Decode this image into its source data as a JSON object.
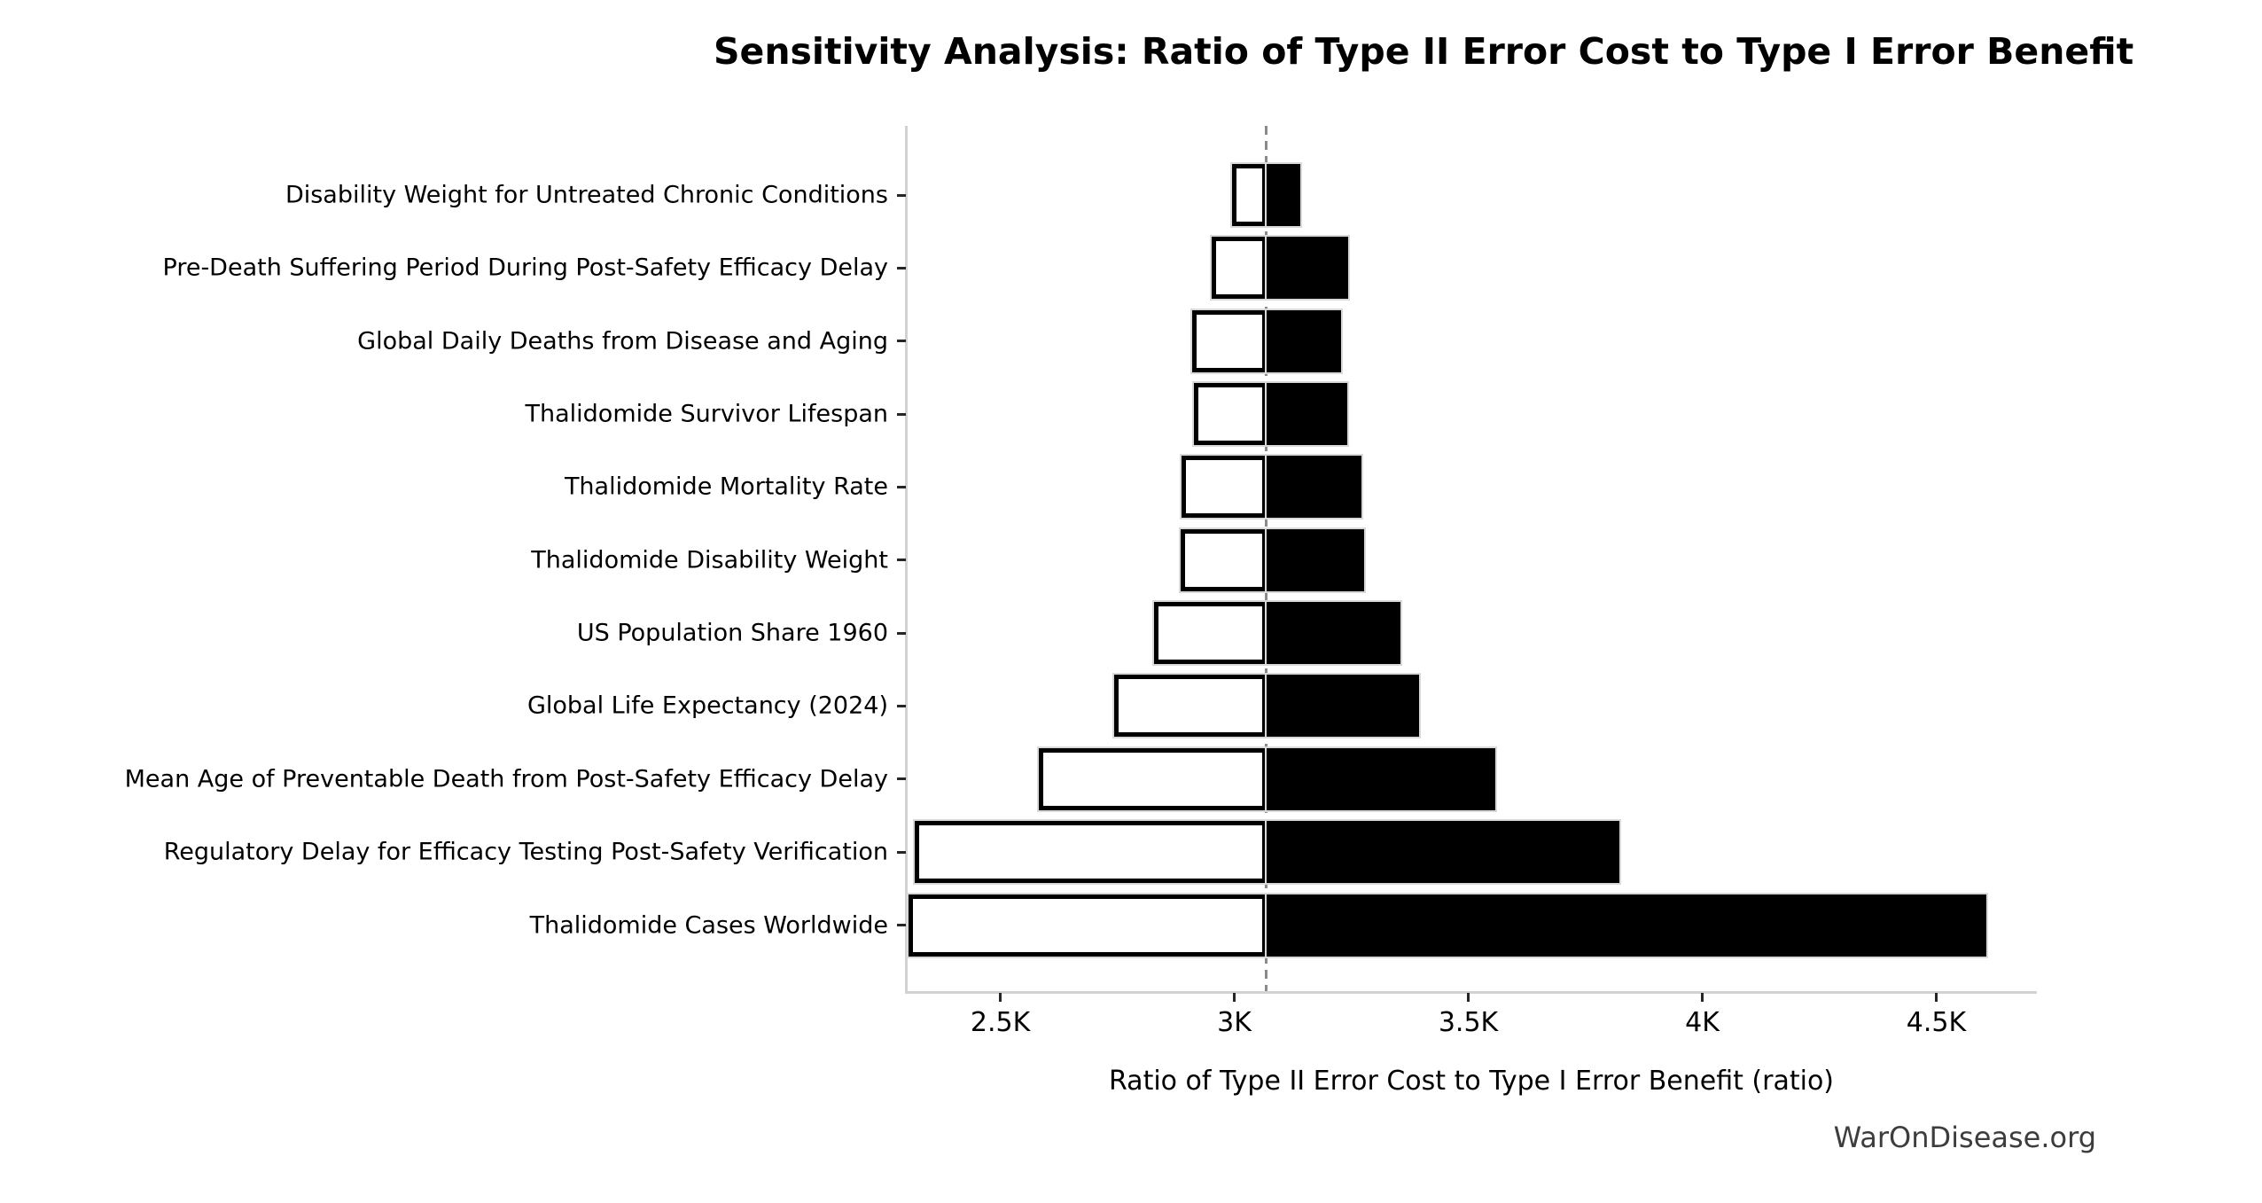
{
  "title": "Sensitivity Analysis: Ratio of Type II Error Cost to Type I Error Benefit",
  "watermark": "WarOnDisease.org",
  "chart_data": {
    "type": "bar",
    "subtype": "tornado",
    "orientation": "horizontal",
    "title": "Sensitivity Analysis: Ratio of Type II Error Cost to Type I Error Benefit",
    "xlabel": "Ratio of Type II Error Cost to Type I Error Benefit (ratio)",
    "ylabel": "",
    "baseline": 3069,
    "xlim": [
      2300,
      4715
    ],
    "grid": false,
    "legend_position": "none",
    "x_ticks": [
      {
        "value": 2500,
        "label": "2.5K"
      },
      {
        "value": 3000,
        "label": "3K"
      },
      {
        "value": 3500,
        "label": "3.5K"
      },
      {
        "value": 4000,
        "label": "4K"
      },
      {
        "value": 4500,
        "label": "4.5K"
      }
    ],
    "rows": [
      {
        "label": "Disability Weight for Untreated Chronic Conditions",
        "low": 2996,
        "high": 3141
      },
      {
        "label": "Pre-Death Suffering Period During Post-Safety Efficacy Delay",
        "low": 2951,
        "high": 3244
      },
      {
        "label": "Global Daily Deaths from Disease and Aging",
        "low": 2910,
        "high": 3228
      },
      {
        "label": "Thalidomide Survivor Lifespan",
        "low": 2913,
        "high": 3242
      },
      {
        "label": "Thalidomide Mortality Rate",
        "low": 2888,
        "high": 3272
      },
      {
        "label": "Thalidomide Disability Weight",
        "low": 2886,
        "high": 3277
      },
      {
        "label": "US Population Share 1960",
        "low": 2828,
        "high": 3355
      },
      {
        "label": "Global Life Expectancy (2024)",
        "low": 2743,
        "high": 3395
      },
      {
        "label": "Mean Age of Preventable Death from Post-Safety Efficacy Delay",
        "low": 2583,
        "high": 3557
      },
      {
        "label": "Regulatory Delay for Efficacy Testing Post-Safety Verification",
        "low": 2317,
        "high": 3822
      },
      {
        "label": "Thalidomide Cases Worldwide",
        "low": 2304,
        "high": 4607
      }
    ],
    "colors": {
      "low_bar_fill": "#ffffff",
      "low_bar_border": "#000000",
      "high_bar_fill": "#000000",
      "bar_outline": "#d9d9d9",
      "baseline_line": "#8a8a8a",
      "axis_spine": "#d2d2d2",
      "tick": "#262626",
      "text": "#000000",
      "watermark_text": "#3d3d3d"
    }
  }
}
